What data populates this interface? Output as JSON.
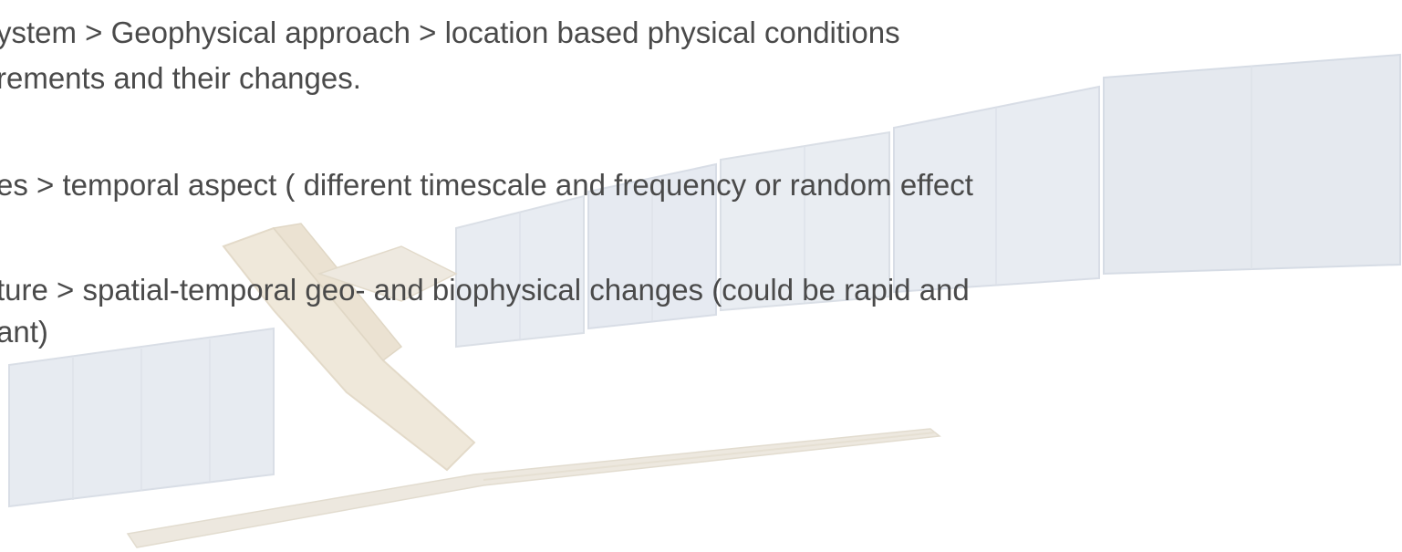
{
  "slide": {
    "lines": [
      "ystem > Geophysical approach > location based physical conditions",
      "rements and their changes.",
      "es > temporal aspect ( different timescale and frequency or random effect",
      "ture >  spatial-temporal geo- and biophysical changes (could be rapid and",
      "ant)"
    ],
    "background_image": "satellite-image",
    "text_color": "#4a4a4a",
    "panel_color": "#d6dde7"
  }
}
